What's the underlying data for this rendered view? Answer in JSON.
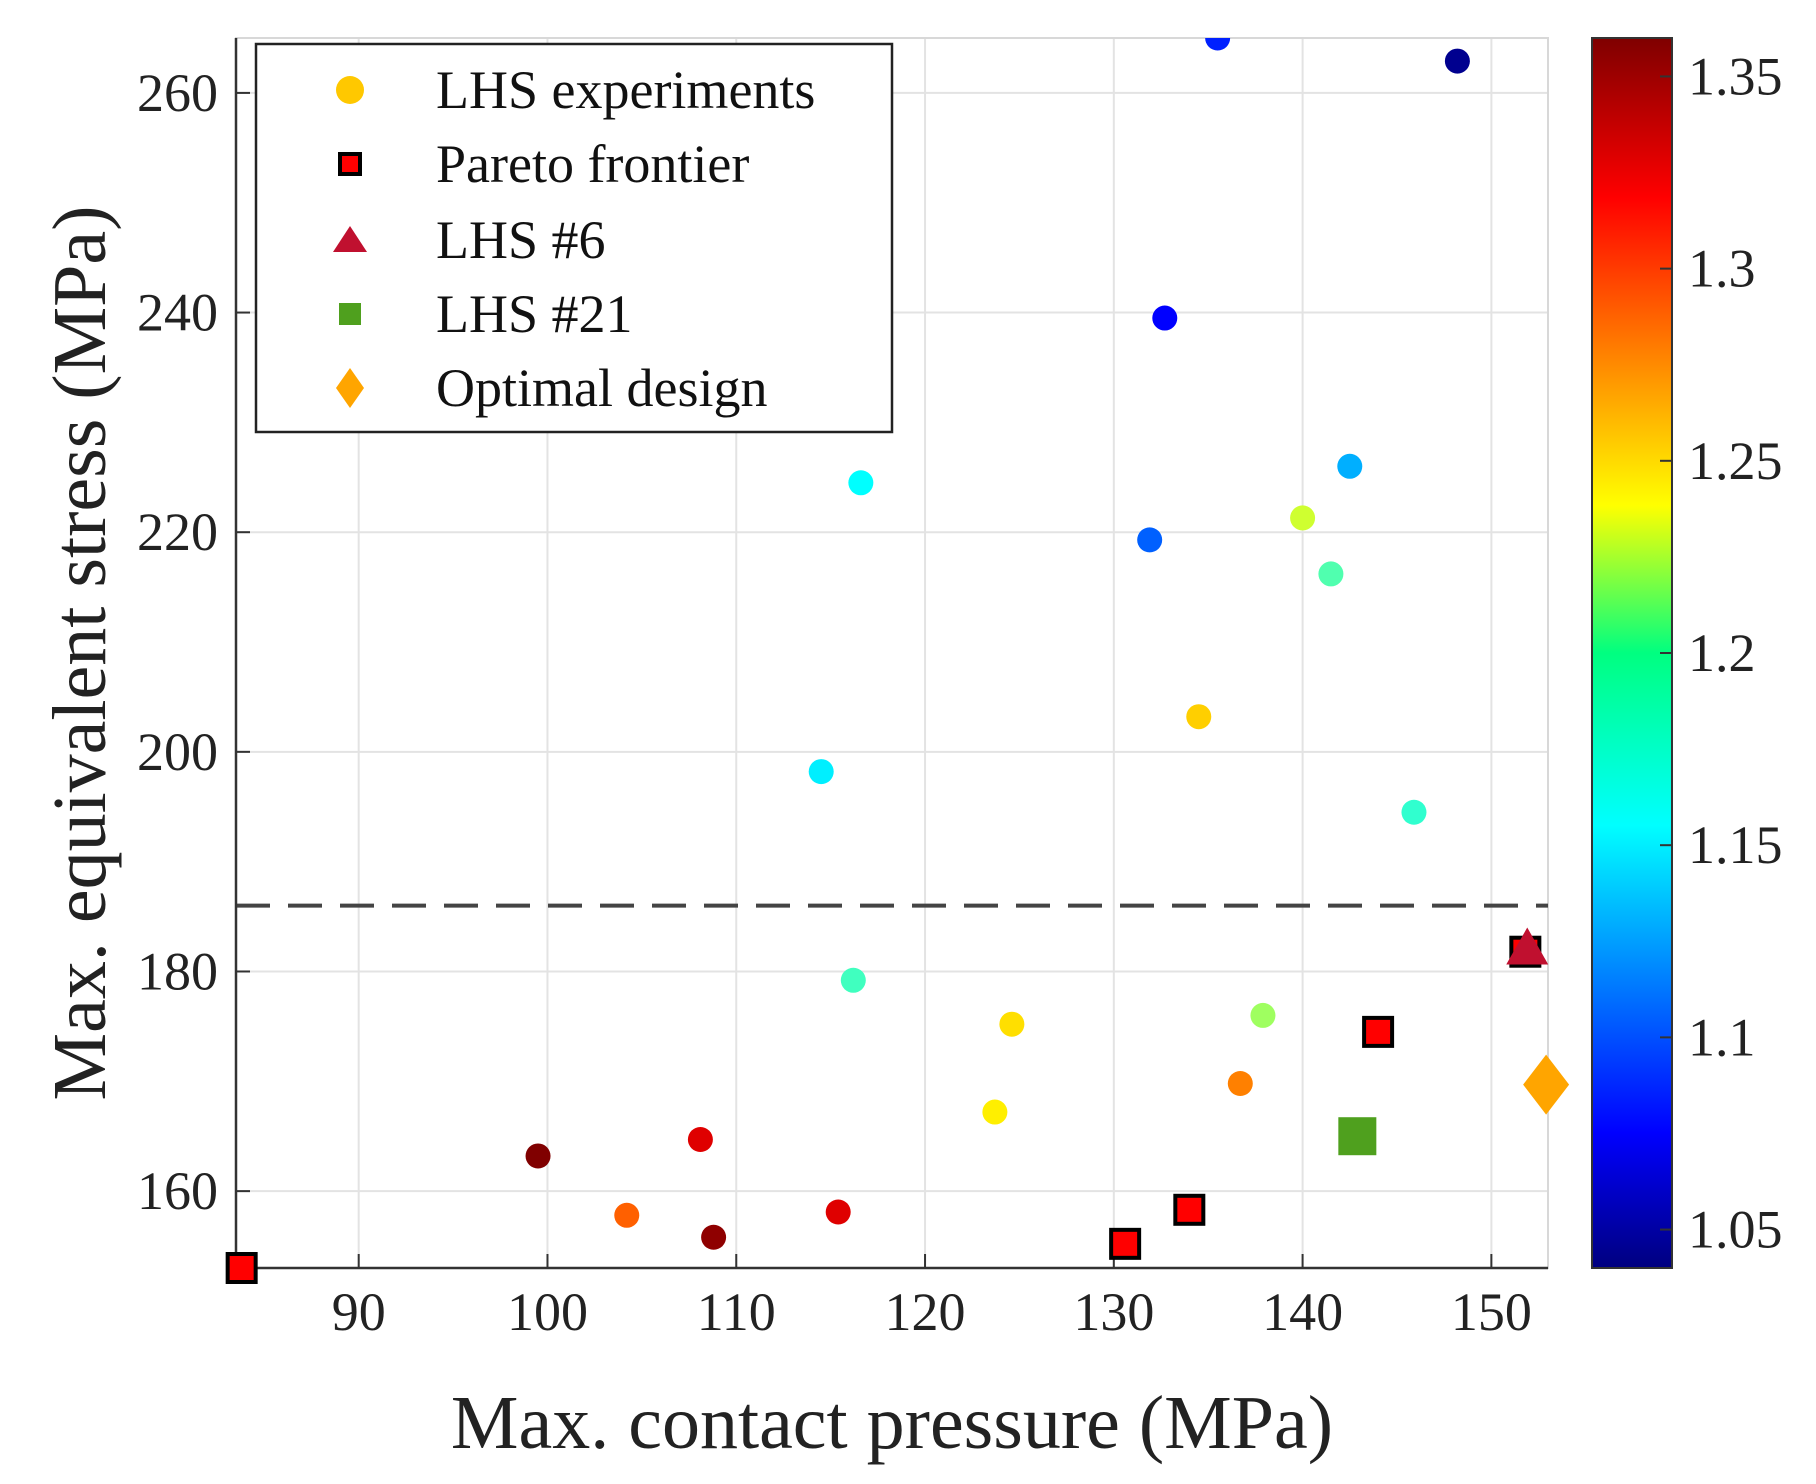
{
  "chart_data": {
    "type": "scatter",
    "xlabel": "Max. contact pressure (MPa)",
    "ylabel": "Max. equivalent stress (MPa)",
    "xlim": [
      83.5,
      153
    ],
    "ylim": [
      153,
      265
    ],
    "x_ticks": [
      90,
      100,
      110,
      120,
      130,
      140,
      150
    ],
    "y_ticks": [
      160,
      180,
      200,
      220,
      240,
      260
    ],
    "grid": true,
    "legend_position": "top-left",
    "reference_line": {
      "y": 186,
      "style": "dashed",
      "color": "#444444"
    },
    "colorbar": {
      "range": [
        1.04,
        1.36
      ],
      "ticks": [
        "1.05",
        "1.1",
        "1.15",
        "1.2",
        "1.25",
        "1.3",
        "1.35"
      ],
      "colormap": "jet"
    },
    "series": [
      {
        "name": "LHS experiments",
        "marker": "circle",
        "legend_color": "#FFC800",
        "points": [
          {
            "x": 135.5,
            "y": 265.0,
            "c": 1.09
          },
          {
            "x": 148.2,
            "y": 262.9,
            "c": 1.045
          },
          {
            "x": 132.7,
            "y": 239.5,
            "c": 1.08
          },
          {
            "x": 116.6,
            "y": 224.5,
            "c": 1.16
          },
          {
            "x": 142.5,
            "y": 226.0,
            "c": 1.135
          },
          {
            "x": 140.0,
            "y": 221.3,
            "c": 1.225
          },
          {
            "x": 131.9,
            "y": 219.3,
            "c": 1.11
          },
          {
            "x": 141.5,
            "y": 216.2,
            "c": 1.185
          },
          {
            "x": 134.5,
            "y": 203.2,
            "c": 1.255
          },
          {
            "x": 114.5,
            "y": 198.2,
            "c": 1.155
          },
          {
            "x": 145.9,
            "y": 194.5,
            "c": 1.175
          },
          {
            "x": 116.2,
            "y": 179.2,
            "c": 1.18
          },
          {
            "x": 124.6,
            "y": 175.2,
            "c": 1.25
          },
          {
            "x": 137.9,
            "y": 176.0,
            "c": 1.21
          },
          {
            "x": 136.7,
            "y": 169.8,
            "c": 1.28
          },
          {
            "x": 123.7,
            "y": 167.2,
            "c": 1.245
          },
          {
            "x": 99.5,
            "y": 163.2,
            "c": 1.36
          },
          {
            "x": 108.1,
            "y": 164.7,
            "c": 1.33
          },
          {
            "x": 104.2,
            "y": 157.8,
            "c": 1.29
          },
          {
            "x": 108.8,
            "y": 155.8,
            "c": 1.355
          },
          {
            "x": 115.4,
            "y": 158.1,
            "c": 1.33
          }
        ]
      },
      {
        "name": "Pareto frontier",
        "marker": "square",
        "legend_color": "#FF0000",
        "points": [
          {
            "x": 83.8,
            "y": 153.0
          },
          {
            "x": 130.6,
            "y": 155.2
          },
          {
            "x": 134.0,
            "y": 158.3
          },
          {
            "x": 144.0,
            "y": 174.5
          },
          {
            "x": 151.8,
            "y": 181.8
          }
        ]
      },
      {
        "name": "LHS #6",
        "marker": "triangle",
        "legend_color": "#C0102F",
        "points": [
          {
            "x": 151.9,
            "y": 182.0
          }
        ]
      },
      {
        "name": "LHS #21",
        "marker": "filled-square",
        "legend_color": "#4FA01E",
        "points": [
          {
            "x": 142.9,
            "y": 165.0
          }
        ]
      },
      {
        "name": "Optimal design",
        "marker": "diamond",
        "legend_color": "#FFA500",
        "points": [
          {
            "x": 152.9,
            "y": 169.7
          }
        ]
      }
    ]
  }
}
